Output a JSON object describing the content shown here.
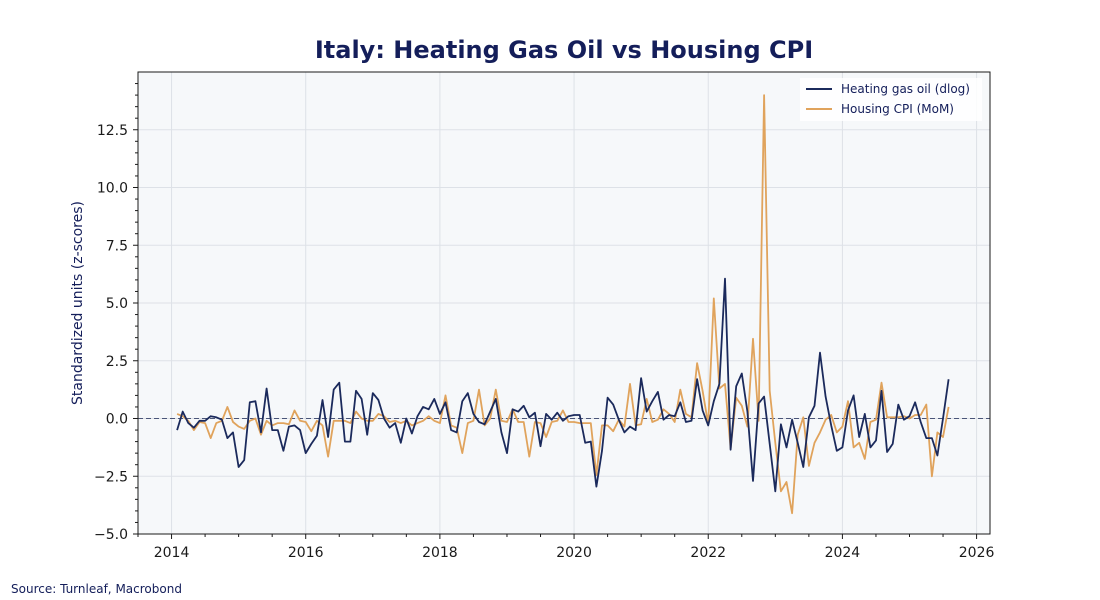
{
  "colors": {
    "gas_oil": "#1b2a5c",
    "housing": "#e0a35c",
    "plot_bg": "#f6f8fa",
    "grid": "#dde1e7",
    "zero_line": "#4a5578"
  },
  "footer": {
    "source": "Source: Turnleaf, Macrobond"
  },
  "chart_data": {
    "type": "line",
    "title": "Italy: Heating Gas Oil vs Housing CPI",
    "xlabel": "",
    "ylabel": "Standardized units (z-scores)",
    "xlim": [
      2013.5,
      2026.2
    ],
    "ylim": [
      -5.0,
      15.0
    ],
    "x_ticks": [
      2014,
      2016,
      2018,
      2020,
      2022,
      2024,
      2026
    ],
    "y_ticks": [
      -5.0,
      -2.5,
      0.0,
      2.5,
      5.0,
      7.5,
      10.0,
      12.5
    ],
    "y_tick_labels": [
      "−5.0",
      "−2.5",
      "0.0",
      "2.5",
      "5.0",
      "7.5",
      "10.0",
      "12.5"
    ],
    "grid": true,
    "legend_position": "top-right",
    "x_start": "2014-02",
    "x_step": "monthly",
    "series": [
      {
        "name": "Heating gas oil (dlog)",
        "values": [
          -0.5,
          0.3,
          -0.2,
          -0.4,
          -0.1,
          -0.1,
          0.1,
          0.05,
          -0.05,
          -0.85,
          -0.6,
          -2.1,
          -1.8,
          0.7,
          0.75,
          -0.6,
          1.3,
          -0.5,
          -0.5,
          -1.4,
          -0.35,
          -0.3,
          -0.5,
          -1.5,
          -1.1,
          -0.75,
          0.8,
          -0.8,
          1.25,
          1.55,
          -1.0,
          -1.0,
          1.2,
          0.85,
          -0.7,
          1.1,
          0.8,
          0.0,
          -0.4,
          -0.2,
          -1.05,
          0.0,
          -0.65,
          0.1,
          0.5,
          0.4,
          0.85,
          0.2,
          0.7,
          -0.5,
          -0.6,
          0.75,
          1.1,
          0.2,
          -0.15,
          -0.25,
          0.3,
          0.85,
          -0.6,
          -1.5,
          0.4,
          0.3,
          0.55,
          0.05,
          0.25,
          -1.2,
          0.2,
          -0.05,
          0.25,
          -0.1,
          0.1,
          0.15,
          0.15,
          -1.05,
          -1.0,
          -2.95,
          -1.4,
          0.9,
          0.6,
          -0.05,
          -0.6,
          -0.35,
          -0.5,
          1.75,
          0.3,
          0.75,
          1.15,
          -0.05,
          0.15,
          0.1,
          0.7,
          -0.15,
          -0.1,
          1.7,
          0.35,
          -0.3,
          0.75,
          1.5,
          6.05,
          -1.35,
          1.4,
          1.95,
          0.3,
          -2.7,
          0.65,
          0.95,
          -1.1,
          -3.15,
          -0.25,
          -1.25,
          -0.05,
          -1.05,
          -2.1,
          0.05,
          0.55,
          2.85,
          0.95,
          -0.3,
          -1.4,
          -1.25,
          0.35,
          1.0,
          -0.8,
          0.2,
          -1.25,
          -0.95,
          1.2,
          -1.45,
          -1.1,
          0.6,
          -0.05,
          0.1,
          0.7,
          -0.15,
          -0.85,
          -0.85,
          -1.6,
          0.0,
          1.7
        ]
      },
      {
        "name": "Housing CPI (MoM)",
        "values": [
          0.2,
          0.1,
          -0.1,
          -0.5,
          -0.15,
          -0.2,
          -0.85,
          -0.2,
          -0.1,
          0.5,
          -0.15,
          -0.35,
          -0.45,
          -0.1,
          0.0,
          -0.7,
          -0.1,
          -0.3,
          -0.2,
          -0.2,
          -0.25,
          0.35,
          -0.1,
          -0.15,
          -0.55,
          -0.1,
          -0.3,
          -1.65,
          -0.1,
          -0.1,
          -0.1,
          -0.2,
          0.3,
          0.0,
          -0.1,
          -0.1,
          0.2,
          0.1,
          -0.15,
          -0.1,
          -0.2,
          -0.1,
          -0.3,
          -0.2,
          -0.1,
          0.1,
          -0.1,
          -0.2,
          1.0,
          -0.3,
          -0.4,
          -1.5,
          -0.2,
          -0.1,
          1.25,
          -0.3,
          0.0,
          1.25,
          -0.1,
          -0.15,
          0.4,
          -0.15,
          -0.15,
          -1.65,
          -0.15,
          -0.2,
          -0.8,
          -0.15,
          -0.1,
          0.35,
          -0.15,
          -0.15,
          -0.2,
          -0.2,
          -0.2,
          -2.45,
          -0.3,
          -0.3,
          -0.55,
          -0.05,
          -0.35,
          1.5,
          -0.3,
          -0.25,
          0.85,
          -0.15,
          -0.05,
          0.4,
          0.2,
          -0.15,
          1.25,
          0.2,
          0.05,
          2.4,
          1.2,
          -0.25,
          5.2,
          1.3,
          1.5,
          -1.3,
          0.9,
          0.55,
          -0.35,
          3.45,
          -0.1,
          14.0,
          1.2,
          -1.05,
          -3.15,
          -2.75,
          -4.1,
          -0.7,
          0.05,
          -2.05,
          -1.05,
          -0.6,
          -0.05,
          0.15,
          -0.6,
          -0.35,
          0.75,
          -1.25,
          -1.05,
          -1.75,
          -0.15,
          -0.05,
          1.55,
          0.05,
          0.05,
          0.05,
          0.1,
          0.0,
          0.15,
          0.15,
          0.6,
          -2.5,
          -0.6,
          -0.8,
          0.5
        ]
      }
    ]
  }
}
